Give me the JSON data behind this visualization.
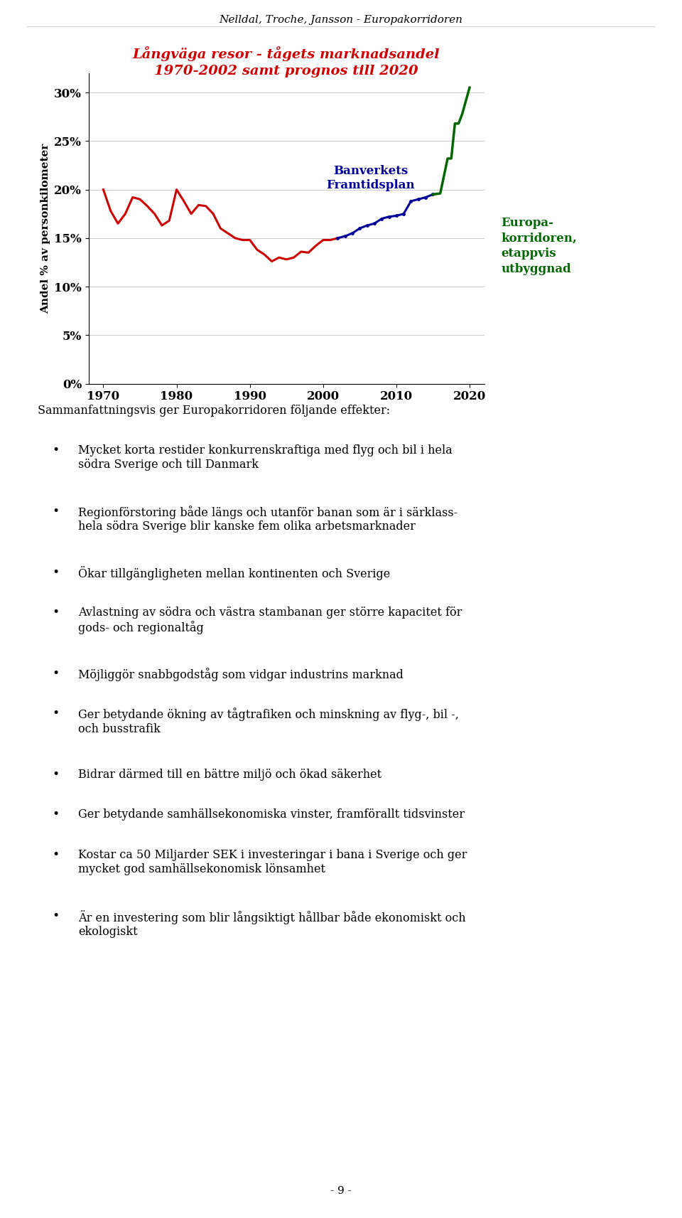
{
  "header": "Nelldal, Troche, Jansson - Europakorridoren",
  "title_line1": "Långväga resor - tågets marknadsandel",
  "title_line2": "1970-2002 samt prognos till 2020",
  "ylabel": "Andel % av personkilometer",
  "xlabel_ticks": [
    1970,
    1980,
    1990,
    2000,
    2010,
    2020
  ],
  "ylim": [
    0,
    0.32
  ],
  "yticks": [
    0.0,
    0.05,
    0.1,
    0.15,
    0.2,
    0.25,
    0.3
  ],
  "ytick_labels": [
    "0%",
    "5%",
    "10%",
    "15%",
    "20%",
    "25%",
    "30%"
  ],
  "red_line_x": [
    1970,
    1971,
    1972,
    1973,
    1974,
    1975,
    1976,
    1977,
    1978,
    1979,
    1980,
    1981,
    1982,
    1983,
    1984,
    1985,
    1986,
    1987,
    1988,
    1989,
    1990,
    1991,
    1992,
    1993,
    1994,
    1995,
    1996,
    1997,
    1998,
    1999,
    2000,
    2001,
    2002
  ],
  "red_line_y": [
    0.2,
    0.178,
    0.165,
    0.175,
    0.192,
    0.19,
    0.183,
    0.175,
    0.163,
    0.168,
    0.2,
    0.188,
    0.175,
    0.184,
    0.183,
    0.175,
    0.16,
    0.155,
    0.15,
    0.148,
    0.148,
    0.138,
    0.133,
    0.126,
    0.13,
    0.128,
    0.13,
    0.136,
    0.135,
    0.142,
    0.148,
    0.148,
    0.15
  ],
  "red_color": "#cc0000",
  "blue_line_x": [
    2002,
    2003,
    2004,
    2005,
    2006,
    2007,
    2008,
    2009,
    2010,
    2011,
    2012,
    2013,
    2014,
    2015
  ],
  "blue_line_y": [
    0.15,
    0.152,
    0.155,
    0.16,
    0.163,
    0.165,
    0.17,
    0.172,
    0.173,
    0.175,
    0.188,
    0.19,
    0.192,
    0.195
  ],
  "blue_color": "#000099",
  "green_line_x": [
    2015,
    2016,
    2017,
    2017.5,
    2018,
    2018.5,
    2019,
    2020
  ],
  "green_line_y": [
    0.195,
    0.196,
    0.232,
    0.232,
    0.268,
    0.268,
    0.278,
    0.305
  ],
  "green_color": "#006600",
  "label_banverket": "Banverkets\nFramtidsplan",
  "label_europa": "Europa-\nkorridoren,\netappvis\nutbyggnad",
  "page_number": "- 9 -",
  "intro_text": "Sammanfattningsvis ger Europakorridoren följande effekter:",
  "bullet_items": [
    "Mycket korta restider konkurrenskraftiga med flyg och bil i hela\nsödra Sverige och till Danmark",
    "Regionförstoring både längs och utanför banan som är i särklass-\nhela södra Sverige blir kanske fem olika arbetsmarknader",
    "Ökar tillgängligheten mellan kontinenten och Sverige",
    "Avlastning av södra och västra stambanan ger större kapacitet för\ngods- och regionaltåg",
    "Möjliggör snabbgodståg som vidgar industrins marknad",
    "Ger betydande ökning av tågtrafiken och minskning av flyg-, bil -,\noch busstrafik",
    "Bidrar därmed till en bättre miljö och ökad säkerhet",
    "Ger betydande samhällsekonomiska vinster, framförallt tidsvinster",
    "Kostar ca 50 Miljarder SEK i investeringar i bana i Sverige och ger\nmycket god samhällsekonomisk lönsamhet",
    "Är en investering som blir långsiktigt hållbar både ekonomiskt och\nekologiskt"
  ]
}
